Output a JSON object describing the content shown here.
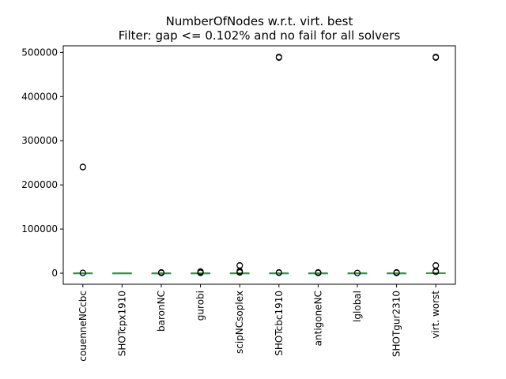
{
  "chart_data": {
    "type": "box",
    "title_line1": "NumberOfNodes w.r.t. virt. best",
    "title_line2": "Filter: gap <= 0.102% and no fail for all solvers",
    "xlabel": "",
    "ylabel": "",
    "ylim": [
      -25000,
      515000
    ],
    "yticks": [
      0,
      100000,
      200000,
      300000,
      400000,
      500000
    ],
    "ytick_labels": [
      "0",
      "100000",
      "200000",
      "300000",
      "400000",
      "500000"
    ],
    "grid": false,
    "colors": {
      "box": "#1f77b4",
      "median": "#2ca02c",
      "whisker": "#000000",
      "flier": "#000000"
    },
    "categories": [
      "couenneNCcbc",
      "SHOTcpx1910",
      "baronNC",
      "gurobi",
      "scipNCsoplex",
      "SHOTcbc1910",
      "antigoneNC",
      "lglobal",
      "SHOTgur2310",
      "virt. worst"
    ],
    "boxes": [
      {
        "name": "couenneNCcbc",
        "whislo": 0,
        "q1": 0,
        "med": 0,
        "q3": 50,
        "whishi": 150,
        "fliers": [
          500,
          900,
          240000,
          241000
        ]
      },
      {
        "name": "SHOTcpx1910",
        "whislo": 0,
        "q1": 0,
        "med": 0,
        "q3": 0,
        "whishi": 0,
        "fliers": []
      },
      {
        "name": "baronNC",
        "whislo": 0,
        "q1": 0,
        "med": 0,
        "q3": 10,
        "whishi": 30,
        "fliers": [
          500,
          1200,
          2000
        ]
      },
      {
        "name": "gurobi",
        "whislo": 0,
        "q1": 0,
        "med": 0,
        "q3": 20,
        "whishi": 50,
        "fliers": [
          600,
          1500,
          2500,
          4000
        ]
      },
      {
        "name": "scipNCsoplex",
        "whislo": 0,
        "q1": 0,
        "med": 0,
        "q3": 100,
        "whishi": 300,
        "fliers": [
          1500,
          3000,
          5000,
          17000,
          18000
        ]
      },
      {
        "name": "SHOTcbc1910",
        "whislo": 0,
        "q1": 0,
        "med": 0,
        "q3": 50,
        "whishi": 150,
        "fliers": [
          800,
          2000,
          488000,
          490000
        ]
      },
      {
        "name": "antigoneNC",
        "whislo": 0,
        "q1": 0,
        "med": 0,
        "q3": 10,
        "whishi": 30,
        "fliers": [
          500,
          1000,
          2000
        ]
      },
      {
        "name": "lglobal",
        "whislo": 0,
        "q1": 0,
        "med": 0,
        "q3": 5,
        "whishi": 10,
        "fliers": [
          300,
          800
        ]
      },
      {
        "name": "SHOTgur2310",
        "whislo": 0,
        "q1": 0,
        "med": 0,
        "q3": 10,
        "whishi": 30,
        "fliers": [
          500,
          1500,
          2000
        ]
      },
      {
        "name": "virt. worst",
        "whislo": 0,
        "q1": 0,
        "med": 100,
        "q3": 500,
        "whishi": 1200,
        "fliers": [
          3000,
          5000,
          17000,
          18000,
          488000,
          490000
        ]
      }
    ]
  }
}
